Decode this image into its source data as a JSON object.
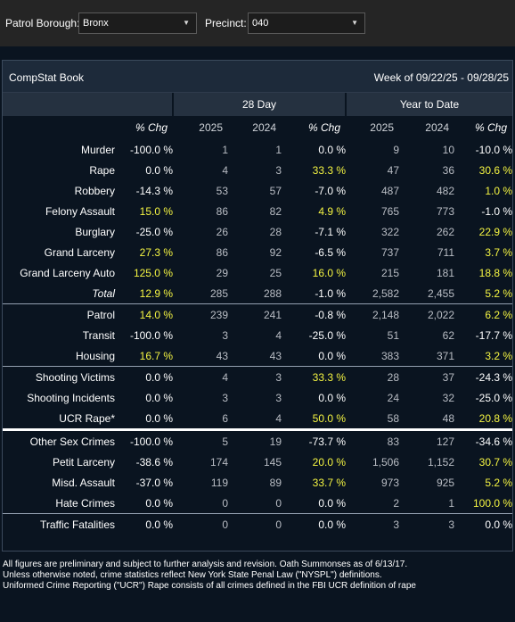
{
  "filters": {
    "borough_label": "Patrol Borough:",
    "borough_value": "Bronx",
    "precinct_label": "Precinct:",
    "precinct_value": "040"
  },
  "panel": {
    "title": "CompStat Book",
    "week": "Week of 09/22/25 - 09/28/25"
  },
  "headers": {
    "group_28day": "28 Day",
    "group_ytd": "Year to Date",
    "cols": [
      "% Chg",
      "2025",
      "2024",
      "% Chg",
      "2025",
      "2024",
      "% Chg"
    ]
  },
  "rows": [
    {
      "name": "Murder",
      "wk": "-100.0 %",
      "d25": "1",
      "d24": "1",
      "dchg": "0.0 %",
      "y25": "9",
      "y24": "10",
      "ychg": "-10.0 %",
      "hl": []
    },
    {
      "name": "Rape",
      "wk": "0.0 %",
      "d25": "4",
      "d24": "3",
      "dchg": "33.3 %",
      "y25": "47",
      "y24": "36",
      "ychg": "30.6 %",
      "hl": [
        "dchg",
        "ychg"
      ]
    },
    {
      "name": "Robbery",
      "wk": "-14.3 %",
      "d25": "53",
      "d24": "57",
      "dchg": "-7.0 %",
      "y25": "487",
      "y24": "482",
      "ychg": "1.0 %",
      "hl": [
        "ychg"
      ]
    },
    {
      "name": "Felony Assault",
      "wk": "15.0 %",
      "d25": "86",
      "d24": "82",
      "dchg": "4.9 %",
      "y25": "765",
      "y24": "773",
      "ychg": "-1.0 %",
      "hl": [
        "wk",
        "dchg"
      ]
    },
    {
      "name": "Burglary",
      "wk": "-25.0 %",
      "d25": "26",
      "d24": "28",
      "dchg": "-7.1 %",
      "y25": "322",
      "y24": "262",
      "ychg": "22.9 %",
      "hl": [
        "ychg"
      ]
    },
    {
      "name": "Grand Larceny",
      "wk": "27.3 %",
      "d25": "86",
      "d24": "92",
      "dchg": "-6.5 %",
      "y25": "737",
      "y24": "711",
      "ychg": "3.7 %",
      "hl": [
        "wk",
        "ychg"
      ]
    },
    {
      "name": "Grand Larceny Auto",
      "wk": "125.0 %",
      "d25": "29",
      "d24": "25",
      "dchg": "16.0 %",
      "y25": "215",
      "y24": "181",
      "ychg": "18.8 %",
      "hl": [
        "wk",
        "dchg",
        "ychg"
      ]
    },
    {
      "name": "Total",
      "wk": "12.9 %",
      "d25": "285",
      "d24": "288",
      "dchg": "-1.0 %",
      "y25": "2,582",
      "y24": "2,455",
      "ychg": "5.2 %",
      "hl": [
        "wk",
        "ychg"
      ],
      "italic": true
    },
    {
      "name": "Patrol",
      "wk": "14.0 %",
      "d25": "239",
      "d24": "241",
      "dchg": "-0.8 %",
      "y25": "2,148",
      "y24": "2,022",
      "ychg": "6.2 %",
      "hl": [
        "wk",
        "ychg"
      ],
      "sep": "sec"
    },
    {
      "name": "Transit",
      "wk": "-100.0 %",
      "d25": "3",
      "d24": "4",
      "dchg": "-25.0 %",
      "y25": "51",
      "y24": "62",
      "ychg": "-17.7 %",
      "hl": []
    },
    {
      "name": "Housing",
      "wk": "16.7 %",
      "d25": "43",
      "d24": "43",
      "dchg": "0.0 %",
      "y25": "383",
      "y24": "371",
      "ychg": "3.2 %",
      "hl": [
        "wk",
        "ychg"
      ]
    },
    {
      "name": "Shooting Victims",
      "wk": "0.0 %",
      "d25": "4",
      "d24": "3",
      "dchg": "33.3 %",
      "y25": "28",
      "y24": "37",
      "ychg": "-24.3 %",
      "hl": [
        "dchg"
      ],
      "sep": "sec"
    },
    {
      "name": "Shooting Incidents",
      "wk": "0.0 %",
      "d25": "3",
      "d24": "3",
      "dchg": "0.0 %",
      "y25": "24",
      "y24": "32",
      "ychg": "-25.0 %",
      "hl": []
    },
    {
      "name": "UCR Rape*",
      "wk": "0.0 %",
      "d25": "6",
      "d24": "4",
      "dchg": "50.0 %",
      "y25": "58",
      "y24": "48",
      "ychg": "20.8 %",
      "hl": [
        "dchg",
        "ychg"
      ]
    },
    {
      "name": "Other Sex Crimes",
      "wk": "-100.0 %",
      "d25": "5",
      "d24": "19",
      "dchg": "-73.7 %",
      "y25": "83",
      "y24": "127",
      "ychg": "-34.6 %",
      "hl": [],
      "sep": "strong"
    },
    {
      "name": "Petit Larceny",
      "wk": "-38.6 %",
      "d25": "174",
      "d24": "145",
      "dchg": "20.0 %",
      "y25": "1,506",
      "y24": "1,152",
      "ychg": "30.7 %",
      "hl": [
        "dchg",
        "ychg"
      ]
    },
    {
      "name": "Misd. Assault",
      "wk": "-37.0 %",
      "d25": "119",
      "d24": "89",
      "dchg": "33.7 %",
      "y25": "973",
      "y24": "925",
      "ychg": "5.2 %",
      "hl": [
        "dchg",
        "ychg"
      ]
    },
    {
      "name": "Hate Crimes",
      "wk": "0.0 %",
      "d25": "0",
      "d24": "0",
      "dchg": "0.0 %",
      "y25": "2",
      "y24": "1",
      "ychg": "100.0 %",
      "hl": [
        "ychg"
      ]
    },
    {
      "name": "Traffic Fatalities",
      "wk": "0.0 %",
      "d25": "0",
      "d24": "0",
      "dchg": "0.0 %",
      "y25": "3",
      "y24": "3",
      "ychg": "0.0 %",
      "hl": [],
      "sep": "sec"
    }
  ],
  "footer": {
    "line1": "All figures are preliminary and subject to further analysis and revision. Oath Summonses as of 6/13/17.",
    "line2": "Unless otherwise noted, crime statistics reflect New York State Penal Law (\"NYSPL\") definitions.",
    "line3": "Uniformed Crime Reporting (\"UCR\") Rape consists of all crimes defined in the FBI UCR definition of rape"
  },
  "colors": {
    "highlight": "#f5f542",
    "header_bg": "#253140",
    "panel_head_bg": "#1d2a3a"
  }
}
